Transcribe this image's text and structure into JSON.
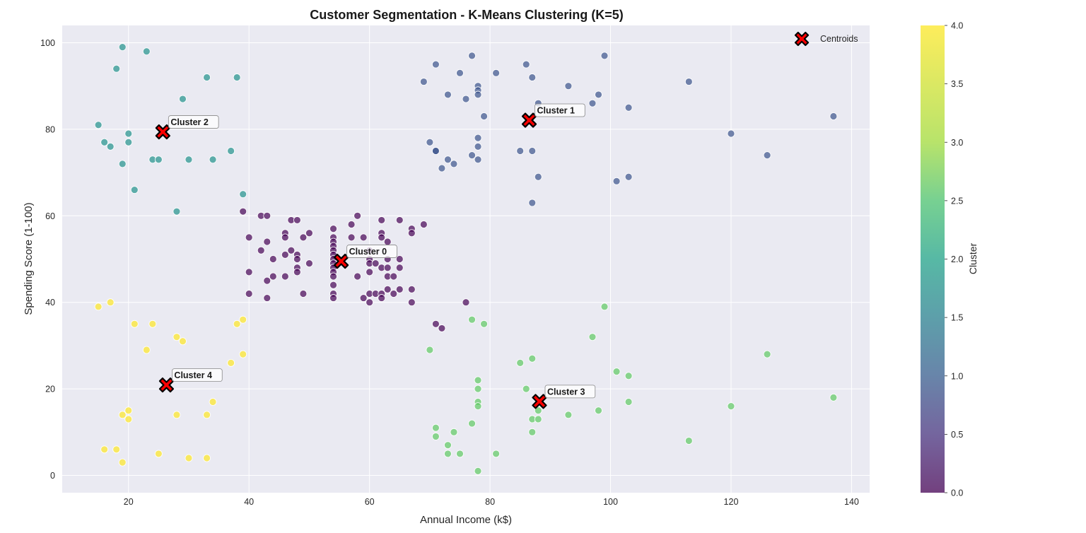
{
  "chart_data": {
    "type": "scatter",
    "title": "Customer Segmentation - K-Means Clustering (K=5)",
    "xlabel": "Annual Income (k$)",
    "ylabel": "Spending Score (1-100)",
    "xlim": [
      9,
      143
    ],
    "ylim": [
      -4,
      104
    ],
    "x_ticks": [
      20,
      40,
      60,
      80,
      100,
      120,
      140
    ],
    "y_ticks": [
      0,
      20,
      40,
      60,
      80,
      100
    ],
    "grid": true,
    "colormap": "viridis",
    "colorbar": {
      "label": "Cluster",
      "range": [
        0,
        4
      ],
      "ticks": [
        "0.0",
        "0.5",
        "1.0",
        "1.5",
        "2.0",
        "2.5",
        "3.0",
        "3.5",
        "4.0"
      ]
    },
    "legend": {
      "position": "top-right",
      "entries": [
        "Centroids"
      ]
    },
    "cluster_colors": [
      "#440154",
      "#3b528b",
      "#21918c",
      "#5ec962",
      "#fde725"
    ],
    "centroid_color": "#ff0000",
    "clusters": [
      {
        "cluster": 0,
        "points": [
          [
            39,
            61
          ],
          [
            42,
            60
          ],
          [
            43,
            60
          ],
          [
            47,
            59
          ],
          [
            48,
            59
          ],
          [
            54,
            57
          ],
          [
            57,
            58
          ],
          [
            58,
            60
          ],
          [
            62,
            59
          ],
          [
            65,
            59
          ],
          [
            69,
            58
          ],
          [
            67,
            57
          ],
          [
            67,
            56
          ],
          [
            62,
            56
          ],
          [
            62,
            55
          ],
          [
            57,
            55
          ],
          [
            59,
            55
          ],
          [
            54,
            55
          ],
          [
            54,
            54
          ],
          [
            54,
            53
          ],
          [
            54,
            52
          ],
          [
            54,
            51
          ],
          [
            54,
            50
          ],
          [
            54,
            49
          ],
          [
            54,
            48
          ],
          [
            54,
            47
          ],
          [
            54,
            46
          ],
          [
            54,
            44
          ],
          [
            54,
            42
          ],
          [
            54,
            41
          ],
          [
            46,
            56
          ],
          [
            46,
            55
          ],
          [
            50,
            56
          ],
          [
            40,
            55
          ],
          [
            43,
            54
          ],
          [
            49,
            55
          ],
          [
            42,
            52
          ],
          [
            44,
            50
          ],
          [
            46,
            51
          ],
          [
            47,
            52
          ],
          [
            48,
            51
          ],
          [
            48,
            50
          ],
          [
            48,
            48
          ],
          [
            48,
            47
          ],
          [
            46,
            46
          ],
          [
            44,
            46
          ],
          [
            43,
            45
          ],
          [
            40,
            47
          ],
          [
            40,
            42
          ],
          [
            43,
            41
          ],
          [
            49,
            42
          ],
          [
            50,
            49
          ],
          [
            60,
            52
          ],
          [
            60,
            50
          ],
          [
            60,
            49
          ],
          [
            60,
            47
          ],
          [
            61,
            49
          ],
          [
            62,
            48
          ],
          [
            63,
            54
          ],
          [
            63,
            50
          ],
          [
            63,
            48
          ],
          [
            63,
            46
          ],
          [
            64,
            46
          ],
          [
            65,
            50
          ],
          [
            65,
            48
          ],
          [
            58,
            46
          ],
          [
            59,
            41
          ],
          [
            60,
            40
          ],
          [
            60,
            42
          ],
          [
            61,
            42
          ],
          [
            62,
            42
          ],
          [
            62,
            41
          ],
          [
            63,
            43
          ],
          [
            64,
            42
          ],
          [
            65,
            43
          ],
          [
            67,
            43
          ],
          [
            67,
            40
          ],
          [
            76,
            40
          ],
          [
            71,
            35
          ],
          [
            72,
            34
          ]
        ]
      },
      {
        "cluster": 1,
        "points": [
          [
            69,
            91
          ],
          [
            71,
            95
          ],
          [
            75,
            93
          ],
          [
            77,
            97
          ],
          [
            81,
            93
          ],
          [
            86,
            95
          ],
          [
            87,
            92
          ],
          [
            73,
            88
          ],
          [
            76,
            87
          ],
          [
            78,
            90
          ],
          [
            78,
            89
          ],
          [
            78,
            88
          ],
          [
            79,
            83
          ],
          [
            88,
            86
          ],
          [
            93,
            90
          ],
          [
            97,
            86
          ],
          [
            98,
            88
          ],
          [
            99,
            97
          ],
          [
            103,
            85
          ],
          [
            113,
            91
          ],
          [
            137,
            83
          ],
          [
            120,
            79
          ],
          [
            126,
            74
          ],
          [
            70,
            77
          ],
          [
            71,
            75
          ],
          [
            71,
            75
          ],
          [
            72,
            71
          ],
          [
            73,
            73
          ],
          [
            74,
            72
          ],
          [
            77,
            74
          ],
          [
            78,
            78
          ],
          [
            78,
            76
          ],
          [
            78,
            73
          ],
          [
            85,
            75
          ],
          [
            87,
            75
          ],
          [
            88,
            69
          ],
          [
            87,
            63
          ],
          [
            101,
            68
          ],
          [
            103,
            69
          ]
        ]
      },
      {
        "cluster": 2,
        "points": [
          [
            19,
            99
          ],
          [
            23,
            98
          ],
          [
            18,
            94
          ],
          [
            33,
            92
          ],
          [
            38,
            92
          ],
          [
            29,
            87
          ],
          [
            15,
            81
          ],
          [
            20,
            79
          ],
          [
            16,
            77
          ],
          [
            20,
            77
          ],
          [
            17,
            76
          ],
          [
            19,
            72
          ],
          [
            24,
            73
          ],
          [
            25,
            73
          ],
          [
            30,
            73
          ],
          [
            34,
            73
          ],
          [
            37,
            75
          ],
          [
            21,
            66
          ],
          [
            28,
            61
          ],
          [
            39,
            65
          ]
        ]
      },
      {
        "cluster": 3,
        "points": [
          [
            99,
            39
          ],
          [
            77,
            36
          ],
          [
            79,
            35
          ],
          [
            97,
            32
          ],
          [
            70,
            29
          ],
          [
            126,
            28
          ],
          [
            87,
            27
          ],
          [
            85,
            26
          ],
          [
            101,
            24
          ],
          [
            103,
            23
          ],
          [
            78,
            22
          ],
          [
            86,
            20
          ],
          [
            78,
            20
          ],
          [
            137,
            18
          ],
          [
            78,
            17
          ],
          [
            78,
            16
          ],
          [
            120,
            16
          ],
          [
            103,
            17
          ],
          [
            88,
            15
          ],
          [
            98,
            15
          ],
          [
            93,
            14
          ],
          [
            87,
            13
          ],
          [
            88,
            13
          ],
          [
            77,
            12
          ],
          [
            71,
            11
          ],
          [
            74,
            10
          ],
          [
            87,
            10
          ],
          [
            71,
            9
          ],
          [
            113,
            8
          ],
          [
            73,
            7
          ],
          [
            73,
            5
          ],
          [
            75,
            5
          ],
          [
            81,
            5
          ],
          [
            78,
            1
          ]
        ]
      },
      {
        "cluster": 4,
        "points": [
          [
            15,
            39
          ],
          [
            17,
            40
          ],
          [
            21,
            35
          ],
          [
            24,
            35
          ],
          [
            39,
            36
          ],
          [
            38,
            35
          ],
          [
            28,
            32
          ],
          [
            29,
            31
          ],
          [
            23,
            29
          ],
          [
            39,
            28
          ],
          [
            37,
            26
          ],
          [
            34,
            17
          ],
          [
            20,
            15
          ],
          [
            19,
            14
          ],
          [
            28,
            14
          ],
          [
            33,
            14
          ],
          [
            20,
            13
          ],
          [
            16,
            6
          ],
          [
            18,
            6
          ],
          [
            25,
            5
          ],
          [
            30,
            4
          ],
          [
            33,
            4
          ],
          [
            19,
            3
          ]
        ]
      }
    ],
    "centroids": [
      {
        "cluster": 0,
        "x": 55.3,
        "y": 49.5,
        "label": "Cluster 0"
      },
      {
        "cluster": 1,
        "x": 86.5,
        "y": 82.1,
        "label": "Cluster 1"
      },
      {
        "cluster": 2,
        "x": 25.7,
        "y": 79.4,
        "label": "Cluster 2"
      },
      {
        "cluster": 3,
        "x": 88.2,
        "y": 17.1,
        "label": "Cluster 3"
      },
      {
        "cluster": 4,
        "x": 26.3,
        "y": 20.9,
        "label": "Cluster 4"
      }
    ]
  }
}
